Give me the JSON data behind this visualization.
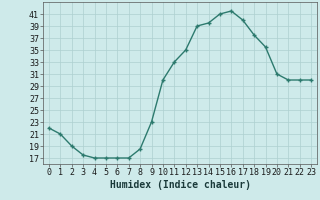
{
  "x": [
    0,
    1,
    2,
    3,
    4,
    5,
    6,
    7,
    8,
    9,
    10,
    11,
    12,
    13,
    14,
    15,
    16,
    17,
    18,
    19,
    20,
    21,
    22,
    23
  ],
  "y": [
    22,
    21,
    19,
    17.5,
    17,
    17,
    17,
    17,
    18.5,
    23,
    30,
    33,
    35,
    39,
    39.5,
    41,
    41.5,
    40,
    37.5,
    35.5,
    31,
    30,
    30,
    30
  ],
  "line_color": "#2d7a6e",
  "marker": "+",
  "marker_size": 3.5,
  "marker_edge_width": 1.0,
  "bg_color": "#ceeaea",
  "grid_color": "#aed0d0",
  "xlabel": "Humidex (Indice chaleur)",
  "ylim": [
    16,
    43
  ],
  "xlim": [
    -0.5,
    23.5
  ],
  "yticks": [
    17,
    19,
    21,
    23,
    25,
    27,
    29,
    31,
    33,
    35,
    37,
    39,
    41
  ],
  "xticks": [
    0,
    1,
    2,
    3,
    4,
    5,
    6,
    7,
    8,
    9,
    10,
    11,
    12,
    13,
    14,
    15,
    16,
    17,
    18,
    19,
    20,
    21,
    22,
    23
  ],
  "xlabel_fontsize": 7,
  "tick_fontsize": 6,
  "line_width": 1.0
}
